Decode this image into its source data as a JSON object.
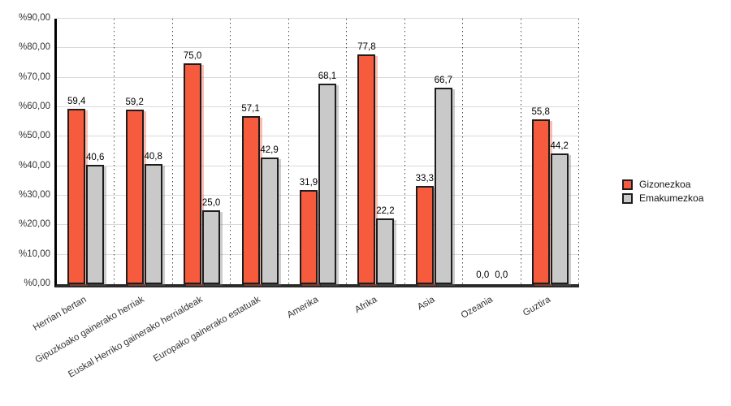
{
  "chart_data": {
    "type": "bar",
    "title": "",
    "xlabel": "",
    "ylabel": "",
    "ylim": [
      0,
      90
    ],
    "grid": "horizontal-solid-and-vertical-dotted",
    "legend_position": "right",
    "categories": [
      "Herrian bertan",
      "Gipuzkoako gainerako herriak",
      "Euskal Herriko gainerako herrialdeak",
      "Europako gainerako estatuak",
      "Amerika",
      "Afrika",
      "Asia",
      "Ozeania",
      "Guztira"
    ],
    "series": [
      {
        "name": "Gizonezkoa",
        "color": "#f75b3d",
        "shadow_color": "rgba(247,91,61,0.4)",
        "values": [
          59.4,
          59.2,
          75.0,
          57.1,
          31.9,
          77.8,
          33.3,
          0.0,
          55.8
        ],
        "labels": [
          "59,4",
          "59,2",
          "75,0",
          "57,1",
          "31,9",
          "77,8",
          "33,3",
          "0,0",
          "55,8"
        ]
      },
      {
        "name": "Emakumezkoa",
        "color": "#c9c9c9",
        "shadow_color": "rgba(110,110,110,0.35)",
        "values": [
          40.6,
          40.8,
          25.0,
          42.9,
          68.1,
          22.2,
          66.7,
          0.0,
          44.2
        ],
        "labels": [
          "40,6",
          "40,8",
          "25,0",
          "42,9",
          "68,1",
          "22,2",
          "66,7",
          "0,0",
          "44,2"
        ]
      }
    ],
    "yticks": [
      {
        "value": 0,
        "label": "%0,00"
      },
      {
        "value": 10,
        "label": "%10,00"
      },
      {
        "value": 20,
        "label": "%20,00"
      },
      {
        "value": 30,
        "label": "%30,00"
      },
      {
        "value": 40,
        "label": "%40,00"
      },
      {
        "value": 50,
        "label": "%50,00"
      },
      {
        "value": 60,
        "label": "%60,00"
      },
      {
        "value": 70,
        "label": "%70,00"
      },
      {
        "value": 80,
        "label": "%80,00"
      },
      {
        "value": 90,
        "label": "%90,00"
      }
    ]
  }
}
